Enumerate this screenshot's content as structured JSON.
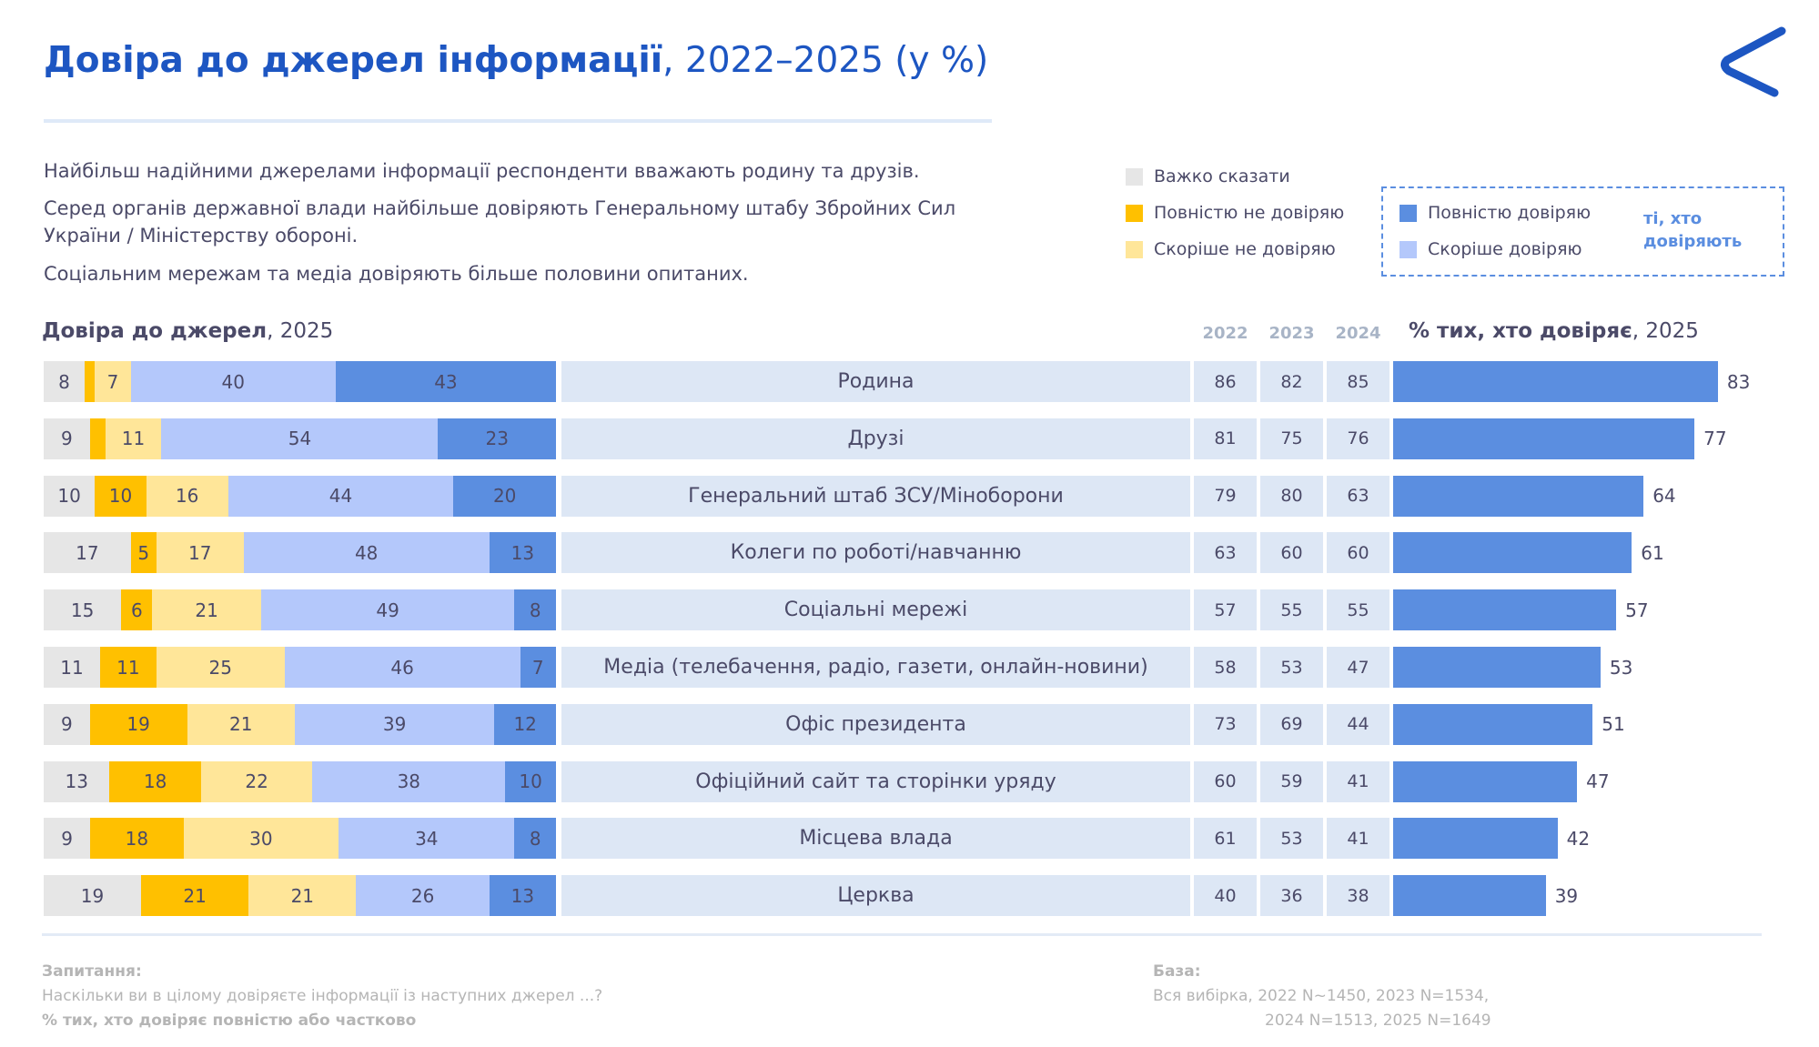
{
  "title": {
    "bold": "Довіра до джерел інформації",
    "rest": ", 2022–2025 (у %)"
  },
  "paragraphs": [
    "Найбільш надійними джерелами інформації респонденти вважають родину та друзів.",
    "Серед органів державної влади найбільше довіряють Генеральному штабу Збройних Сил України / Міністерству обороні.",
    "Соціальним мережам та медіа довіряють більше половини опитаних."
  ],
  "legend": [
    {
      "label": "Важко сказати",
      "color": "#e6e6e6"
    },
    {
      "label": "Повністю не довіряю",
      "color": "#ffc000"
    },
    {
      "label": "Скоріше не довіряю",
      "color": "#ffe699"
    },
    {
      "label": "Повністю довіряю",
      "color": "#5b8ee0"
    },
    {
      "label": "Скоріше довіряю",
      "color": "#b4c8fb"
    }
  ],
  "legend_group_label": "ті, хто довіряють",
  "chart_data": {
    "type": "bar",
    "title_left": {
      "bold": "Довіра до джерел",
      "rest": ", 2025"
    },
    "title_right": {
      "bold": "% тих, хто довіряє",
      "rest": ", 2025"
    },
    "year_headers": [
      "2022",
      "2023",
      "2024"
    ],
    "segment_order": [
      "Важко сказати",
      "Повністю не довіряю",
      "Скоріше не довіряю",
      "Скоріше довіряю",
      "Повністю довіряю"
    ],
    "rows": [
      {
        "label": "Родина",
        "segs": [
          8,
          2,
          7,
          40,
          43
        ],
        "seg_labels": [
          "8",
          "",
          "7",
          "40",
          "43"
        ],
        "years": [
          86,
          82,
          85
        ],
        "trust2025": 83
      },
      {
        "label": "Друзі",
        "segs": [
          9,
          3,
          11,
          54,
          23
        ],
        "seg_labels": [
          "9",
          "",
          "11",
          "54",
          "23"
        ],
        "years": [
          81,
          75,
          76
        ],
        "trust2025": 77
      },
      {
        "label": "Генеральний штаб ЗСУ/Міноборони",
        "segs": [
          10,
          10,
          16,
          44,
          20
        ],
        "seg_labels": [
          "10",
          "10",
          "16",
          "44",
          "20"
        ],
        "years": [
          79,
          80,
          63
        ],
        "trust2025": 64
      },
      {
        "label": "Колеги по роботі/навчанню",
        "segs": [
          17,
          5,
          17,
          48,
          13
        ],
        "seg_labels": [
          "17",
          "5",
          "17",
          "48",
          "13"
        ],
        "years": [
          63,
          60,
          60
        ],
        "trust2025": 61
      },
      {
        "label": "Соціальні мережі",
        "segs": [
          15,
          6,
          21,
          49,
          8
        ],
        "seg_labels": [
          "15",
          "6",
          "21",
          "49",
          "8"
        ],
        "years": [
          57,
          55,
          55
        ],
        "trust2025": 57
      },
      {
        "label": "Медіа (телебачення, радіо, газети, онлайн-новини)",
        "segs": [
          11,
          11,
          25,
          46,
          7
        ],
        "seg_labels": [
          "11",
          "11",
          "25",
          "46",
          "7"
        ],
        "years": [
          58,
          53,
          47
        ],
        "trust2025": 53
      },
      {
        "label": "Офіс президента",
        "segs": [
          9,
          19,
          21,
          39,
          12
        ],
        "seg_labels": [
          "9",
          "19",
          "21",
          "39",
          "12"
        ],
        "years": [
          73,
          69,
          44
        ],
        "trust2025": 51
      },
      {
        "label": "Офіційний сайт та сторінки уряду",
        "segs": [
          13,
          18,
          22,
          38,
          10
        ],
        "seg_labels": [
          "13",
          "18",
          "22",
          "38",
          "10"
        ],
        "years": [
          60,
          59,
          41
        ],
        "trust2025": 47
      },
      {
        "label": "Місцева влада",
        "segs": [
          9,
          18,
          30,
          34,
          8
        ],
        "seg_labels": [
          "9",
          "18",
          "30",
          "34",
          "8"
        ],
        "years": [
          61,
          53,
          41
        ],
        "trust2025": 42
      },
      {
        "label": "Церква",
        "segs": [
          19,
          21,
          21,
          26,
          13
        ],
        "seg_labels": [
          "19",
          "21",
          "21",
          "26",
          "13"
        ],
        "years": [
          40,
          36,
          38
        ],
        "trust2025": 39
      }
    ],
    "xlim": [
      0,
      100
    ]
  },
  "footer": {
    "question_label": "Запитання:",
    "question": "Наскільки ви в цілому довіряєте інформації із наступних джерел ...?",
    "question_note": "% тих, хто довіряє повністю або частково",
    "base_label": "База:",
    "base_line1": "Вся вибірка, 2022  N~1450, 2023  N=1534,",
    "base_line2": "2024 N=1513,  2025  N=1649"
  }
}
